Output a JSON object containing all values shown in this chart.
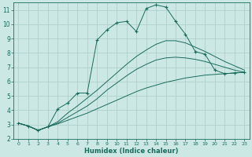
{
  "xlabel": "Humidex (Indice chaleur)",
  "xlim": [
    -0.5,
    23.5
  ],
  "ylim": [
    2,
    11.5
  ],
  "xticks": [
    0,
    1,
    2,
    3,
    4,
    5,
    6,
    7,
    8,
    9,
    10,
    11,
    12,
    13,
    14,
    15,
    16,
    17,
    18,
    19,
    20,
    21,
    22,
    23
  ],
  "yticks": [
    2,
    3,
    4,
    5,
    6,
    7,
    8,
    9,
    10,
    11
  ],
  "bg_color": "#cce8e4",
  "line_color": "#1a6b5e",
  "grid_color": "#aecfca",
  "line1_x": [
    0,
    1,
    2,
    3,
    4,
    5,
    6,
    7,
    8,
    9,
    10,
    11,
    12,
    13,
    14,
    15,
    16,
    17,
    18,
    19,
    20,
    21,
    22,
    23
  ],
  "line1_y": [
    3.1,
    2.9,
    2.6,
    2.85,
    3.05,
    3.3,
    3.55,
    3.8,
    4.1,
    4.4,
    4.7,
    5.0,
    5.3,
    5.55,
    5.75,
    5.95,
    6.1,
    6.25,
    6.35,
    6.45,
    6.5,
    6.55,
    6.6,
    6.65
  ],
  "line2_x": [
    0,
    1,
    2,
    3,
    4,
    5,
    6,
    7,
    8,
    9,
    10,
    11,
    12,
    13,
    14,
    15,
    16,
    17,
    18,
    19,
    20,
    21,
    22,
    23
  ],
  "line2_y": [
    3.1,
    2.9,
    2.6,
    2.85,
    3.1,
    3.5,
    3.9,
    4.3,
    4.8,
    5.4,
    5.9,
    6.4,
    6.85,
    7.2,
    7.5,
    7.65,
    7.7,
    7.65,
    7.55,
    7.4,
    7.2,
    7.0,
    6.8,
    6.65
  ],
  "line3_x": [
    0,
    1,
    2,
    3,
    4,
    5,
    6,
    7,
    8,
    9,
    10,
    11,
    12,
    13,
    14,
    15,
    16,
    17,
    18,
    19,
    20,
    21,
    22,
    23
  ],
  "line3_y": [
    3.1,
    2.9,
    2.6,
    2.85,
    3.2,
    3.8,
    4.3,
    4.85,
    5.4,
    6.0,
    6.6,
    7.2,
    7.75,
    8.2,
    8.6,
    8.85,
    8.85,
    8.7,
    8.4,
    8.1,
    7.75,
    7.4,
    7.1,
    6.8
  ],
  "line4_x": [
    0,
    1,
    2,
    3,
    4,
    5,
    6,
    7,
    8,
    9,
    10,
    11,
    12,
    13,
    14,
    15,
    16,
    17,
    18,
    19,
    20,
    21,
    22,
    23
  ],
  "line4_y": [
    3.1,
    2.9,
    2.6,
    2.85,
    4.1,
    4.5,
    5.2,
    5.2,
    8.9,
    9.6,
    10.1,
    10.2,
    9.5,
    11.1,
    11.35,
    11.2,
    10.2,
    9.3,
    8.1,
    7.9,
    6.8,
    6.55,
    6.6,
    6.65
  ]
}
